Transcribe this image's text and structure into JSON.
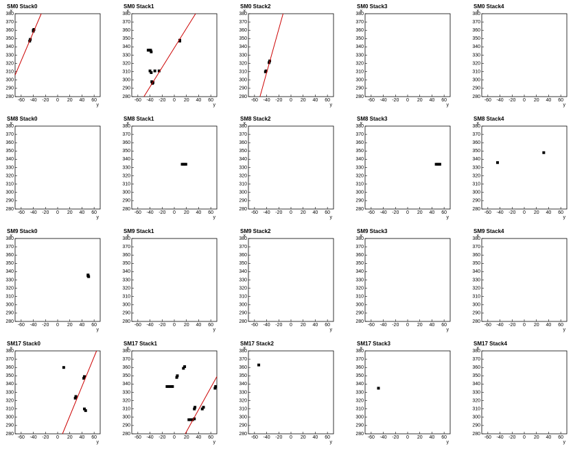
{
  "chart_data": [
    {
      "type": "scatter",
      "title": "SM0 Stack0",
      "x_label": "y",
      "y_label": "x",
      "xlim": [
        -70,
        70
      ],
      "ylim": [
        280,
        380
      ],
      "xticks": [
        -60,
        -40,
        -20,
        0,
        20,
        40,
        60
      ],
      "yticks": [
        280,
        290,
        300,
        310,
        320,
        330,
        340,
        350,
        360,
        370,
        380
      ],
      "series": [
        {
          "mode": "markers",
          "color": "#000000",
          "x": [
            -46,
            -45,
            -40,
            -39,
            -40
          ],
          "values": [
            347,
            349,
            360,
            361,
            359
          ]
        },
        {
          "mode": "line",
          "color": "#cc0000",
          "x": [
            -70,
            -27
          ],
          "values": [
            306,
            380
          ]
        }
      ]
    },
    {
      "type": "scatter",
      "title": "SM0 Stack1",
      "x_label": "y",
      "y_label": "x",
      "xlim": [
        -70,
        70
      ],
      "ylim": [
        280,
        380
      ],
      "xticks": [
        -60,
        -40,
        -20,
        0,
        20,
        40,
        60
      ],
      "yticks": [
        280,
        290,
        300,
        310,
        320,
        330,
        340,
        350,
        360,
        370,
        380
      ],
      "series": [
        {
          "mode": "markers",
          "color": "#000000",
          "x": [
            -43,
            -41,
            -39,
            -38,
            -40,
            -38,
            -37,
            -35,
            -36,
            -32,
            -25,
            9,
            9
          ],
          "values": [
            336,
            336,
            336,
            334,
            311,
            309,
            298,
            297,
            296,
            311,
            311,
            348,
            347
          ]
        },
        {
          "mode": "line",
          "color": "#cc0000",
          "x": [
            -50,
            35
          ],
          "values": [
            280,
            380
          ]
        }
      ]
    },
    {
      "type": "scatter",
      "title": "SM0 Stack2",
      "x_label": "y",
      "y_label": "x",
      "xlim": [
        -70,
        70
      ],
      "ylim": [
        280,
        380
      ],
      "xticks": [
        -60,
        -40,
        -20,
        0,
        20,
        40,
        60
      ],
      "yticks": [
        280,
        290,
        300,
        310,
        320,
        330,
        340,
        350,
        360,
        370,
        380
      ],
      "series": [
        {
          "mode": "markers",
          "color": "#000000",
          "x": [
            -41,
            -42,
            -35,
            -36
          ],
          "values": [
            311,
            310,
            323,
            321
          ]
        },
        {
          "mode": "line",
          "color": "#cc0000",
          "x": [
            -51,
            -13
          ],
          "values": [
            280,
            380
          ]
        }
      ]
    },
    {
      "type": "scatter",
      "title": "SM0 Stack3",
      "x_label": "y",
      "y_label": "x",
      "xlim": [
        -70,
        70
      ],
      "ylim": [
        280,
        380
      ],
      "xticks": [
        -60,
        -40,
        -20,
        0,
        20,
        40,
        60
      ],
      "yticks": [
        280,
        290,
        300,
        310,
        320,
        330,
        340,
        350,
        360,
        370,
        380
      ],
      "series": []
    },
    {
      "type": "scatter",
      "title": "SM0 Stack4",
      "x_label": "y",
      "y_label": "x",
      "xlim": [
        -70,
        70
      ],
      "ylim": [
        280,
        380
      ],
      "xticks": [
        -60,
        -40,
        -20,
        0,
        20,
        40,
        60
      ],
      "yticks": [
        280,
        290,
        300,
        310,
        320,
        330,
        340,
        350,
        360,
        370,
        380
      ],
      "series": []
    },
    {
      "type": "scatter",
      "title": "SM8 Stack0",
      "x_label": "y",
      "y_label": "x",
      "xlim": [
        -70,
        70
      ],
      "ylim": [
        280,
        380
      ],
      "xticks": [
        -60,
        -40,
        -20,
        0,
        20,
        40,
        60
      ],
      "yticks": [
        280,
        290,
        300,
        310,
        320,
        330,
        340,
        350,
        360,
        370,
        380
      ],
      "series": []
    },
    {
      "type": "scatter",
      "title": "SM8 Stack1",
      "x_label": "y",
      "y_label": "x",
      "xlim": [
        -70,
        70
      ],
      "ylim": [
        280,
        380
      ],
      "xticks": [
        -60,
        -40,
        -20,
        0,
        20,
        40,
        60
      ],
      "yticks": [
        280,
        290,
        300,
        310,
        320,
        330,
        340,
        350,
        360,
        370,
        380
      ],
      "series": [
        {
          "mode": "markers",
          "color": "#000000",
          "x": [
            13,
            16,
            19
          ],
          "values": [
            334,
            334,
            334
          ]
        }
      ]
    },
    {
      "type": "scatter",
      "title": "SM8 Stack2",
      "x_label": "y",
      "y_label": "x",
      "xlim": [
        -70,
        70
      ],
      "ylim": [
        280,
        380
      ],
      "xticks": [
        -60,
        -40,
        -20,
        0,
        20,
        40,
        60
      ],
      "yticks": [
        280,
        290,
        300,
        310,
        320,
        330,
        340,
        350,
        360,
        370,
        380
      ],
      "series": []
    },
    {
      "type": "scatter",
      "title": "SM8 Stack3",
      "x_label": "y",
      "y_label": "x",
      "xlim": [
        -70,
        70
      ],
      "ylim": [
        280,
        380
      ],
      "xticks": [
        -60,
        -40,
        -20,
        0,
        20,
        40,
        60
      ],
      "yticks": [
        280,
        290,
        300,
        310,
        320,
        330,
        340,
        350,
        360,
        370,
        380
      ],
      "series": [
        {
          "mode": "markers",
          "color": "#000000",
          "x": [
            47,
            50,
            53
          ],
          "values": [
            334,
            334,
            334
          ]
        }
      ]
    },
    {
      "type": "scatter",
      "title": "SM8 Stack4",
      "x_label": "y",
      "y_label": "x",
      "xlim": [
        -70,
        70
      ],
      "ylim": [
        280,
        380
      ],
      "xticks": [
        -60,
        -40,
        -20,
        0,
        20,
        40,
        60
      ],
      "yticks": [
        280,
        290,
        300,
        310,
        320,
        330,
        340,
        350,
        360,
        370,
        380
      ],
      "series": [
        {
          "mode": "markers",
          "color": "#000000",
          "x": [
            -44,
            32
          ],
          "values": [
            336,
            348
          ]
        }
      ]
    },
    {
      "type": "scatter",
      "title": "SM9 Stack0",
      "x_label": "y",
      "y_label": "x",
      "xlim": [
        -70,
        70
      ],
      "ylim": [
        280,
        380
      ],
      "xticks": [
        -60,
        -40,
        -20,
        0,
        20,
        40,
        60
      ],
      "yticks": [
        280,
        290,
        300,
        310,
        320,
        330,
        340,
        350,
        360,
        370,
        380
      ],
      "series": [
        {
          "mode": "markers",
          "color": "#000000",
          "x": [
            50,
            51,
            50
          ],
          "values": [
            336,
            334,
            335
          ]
        }
      ]
    },
    {
      "type": "scatter",
      "title": "SM9 Stack1",
      "x_label": "y",
      "y_label": "x",
      "xlim": [
        -70,
        70
      ],
      "ylim": [
        280,
        380
      ],
      "xticks": [
        -60,
        -40,
        -20,
        0,
        20,
        40,
        60
      ],
      "yticks": [
        280,
        290,
        300,
        310,
        320,
        330,
        340,
        350,
        360,
        370,
        380
      ],
      "series": []
    },
    {
      "type": "scatter",
      "title": "SM9 Stack2",
      "x_label": "y",
      "y_label": "x",
      "xlim": [
        -70,
        70
      ],
      "ylim": [
        280,
        380
      ],
      "xticks": [
        -60,
        -40,
        -20,
        0,
        20,
        40,
        60
      ],
      "yticks": [
        280,
        290,
        300,
        310,
        320,
        330,
        340,
        350,
        360,
        370,
        380
      ],
      "series": []
    },
    {
      "type": "scatter",
      "title": "SM9 Stack3",
      "x_label": "y",
      "y_label": "x",
      "xlim": [
        -70,
        70
      ],
      "ylim": [
        280,
        380
      ],
      "xticks": [
        -60,
        -40,
        -20,
        0,
        20,
        40,
        60
      ],
      "yticks": [
        280,
        290,
        300,
        310,
        320,
        330,
        340,
        350,
        360,
        370,
        380
      ],
      "series": []
    },
    {
      "type": "scatter",
      "title": "SM9 Stack4",
      "x_label": "y",
      "y_label": "x",
      "xlim": [
        -70,
        70
      ],
      "ylim": [
        280,
        380
      ],
      "xticks": [
        -60,
        -40,
        -20,
        0,
        20,
        40,
        60
      ],
      "yticks": [
        280,
        290,
        300,
        310,
        320,
        330,
        340,
        350,
        360,
        370,
        380
      ],
      "series": []
    },
    {
      "type": "scatter",
      "title": "SM17 Stack0",
      "x_label": "y",
      "y_label": "x",
      "xlim": [
        -70,
        70
      ],
      "ylim": [
        280,
        380
      ],
      "xticks": [
        -60,
        -40,
        -20,
        0,
        20,
        40,
        60
      ],
      "yticks": [
        280,
        290,
        300,
        310,
        320,
        330,
        340,
        350,
        360,
        370,
        380
      ],
      "series": [
        {
          "mode": "markers",
          "color": "#000000",
          "x": [
            10,
            29,
            30,
            43,
            44,
            44,
            46
          ],
          "values": [
            360,
            323,
            325,
            347,
            349,
            310,
            308
          ]
        },
        {
          "mode": "line",
          "color": "#cc0000",
          "x": [
            8,
            64
          ],
          "values": [
            280,
            380
          ]
        }
      ]
    },
    {
      "type": "scatter",
      "title": "SM17 Stack1",
      "x_label": "y",
      "y_label": "x",
      "xlim": [
        -70,
        70
      ],
      "ylim": [
        280,
        380
      ],
      "xticks": [
        -60,
        -40,
        -20,
        0,
        20,
        40,
        60
      ],
      "yticks": [
        280,
        290,
        300,
        310,
        320,
        330,
        340,
        350,
        360,
        370,
        380
      ],
      "series": [
        {
          "mode": "markers",
          "color": "#000000",
          "x": [
            -12,
            -9,
            -6,
            -3,
            4,
            5,
            15,
            17,
            24,
            27,
            30,
            33,
            33,
            34,
            46,
            48,
            67,
            68
          ],
          "values": [
            337,
            337,
            337,
            337,
            348,
            350,
            359,
            361,
            297,
            297,
            297,
            298,
            310,
            312,
            310,
            312,
            335,
            337
          ]
        },
        {
          "mode": "line",
          "color": "#cc0000",
          "x": [
            18,
            70
          ],
          "values": [
            280,
            349
          ]
        }
      ]
    },
    {
      "type": "scatter",
      "title": "SM17 Stack2",
      "x_label": "y",
      "y_label": "x",
      "xlim": [
        -70,
        70
      ],
      "ylim": [
        280,
        380
      ],
      "xticks": [
        -60,
        -40,
        -20,
        0,
        20,
        40,
        60
      ],
      "yticks": [
        280,
        290,
        300,
        310,
        320,
        330,
        340,
        350,
        360,
        370,
        380
      ],
      "series": [
        {
          "mode": "markers",
          "color": "#000000",
          "x": [
            -53
          ],
          "values": [
            363
          ]
        }
      ]
    },
    {
      "type": "scatter",
      "title": "SM17 Stack3",
      "x_label": "y",
      "y_label": "x",
      "xlim": [
        -70,
        70
      ],
      "ylim": [
        280,
        380
      ],
      "xticks": [
        -60,
        -40,
        -20,
        0,
        20,
        40,
        60
      ],
      "yticks": [
        280,
        290,
        300,
        310,
        320,
        330,
        340,
        350,
        360,
        370,
        380
      ],
      "series": [
        {
          "mode": "markers",
          "color": "#000000",
          "x": [
            -48
          ],
          "values": [
            335
          ]
        }
      ]
    },
    {
      "type": "scatter",
      "title": "SM17 Stack4",
      "x_label": "y",
      "y_label": "x",
      "xlim": [
        -70,
        70
      ],
      "ylim": [
        280,
        380
      ],
      "xticks": [
        -60,
        -40,
        -20,
        0,
        20,
        40,
        60
      ],
      "yticks": [
        280,
        290,
        300,
        310,
        320,
        330,
        340,
        350,
        360,
        370,
        380
      ],
      "series": []
    }
  ]
}
